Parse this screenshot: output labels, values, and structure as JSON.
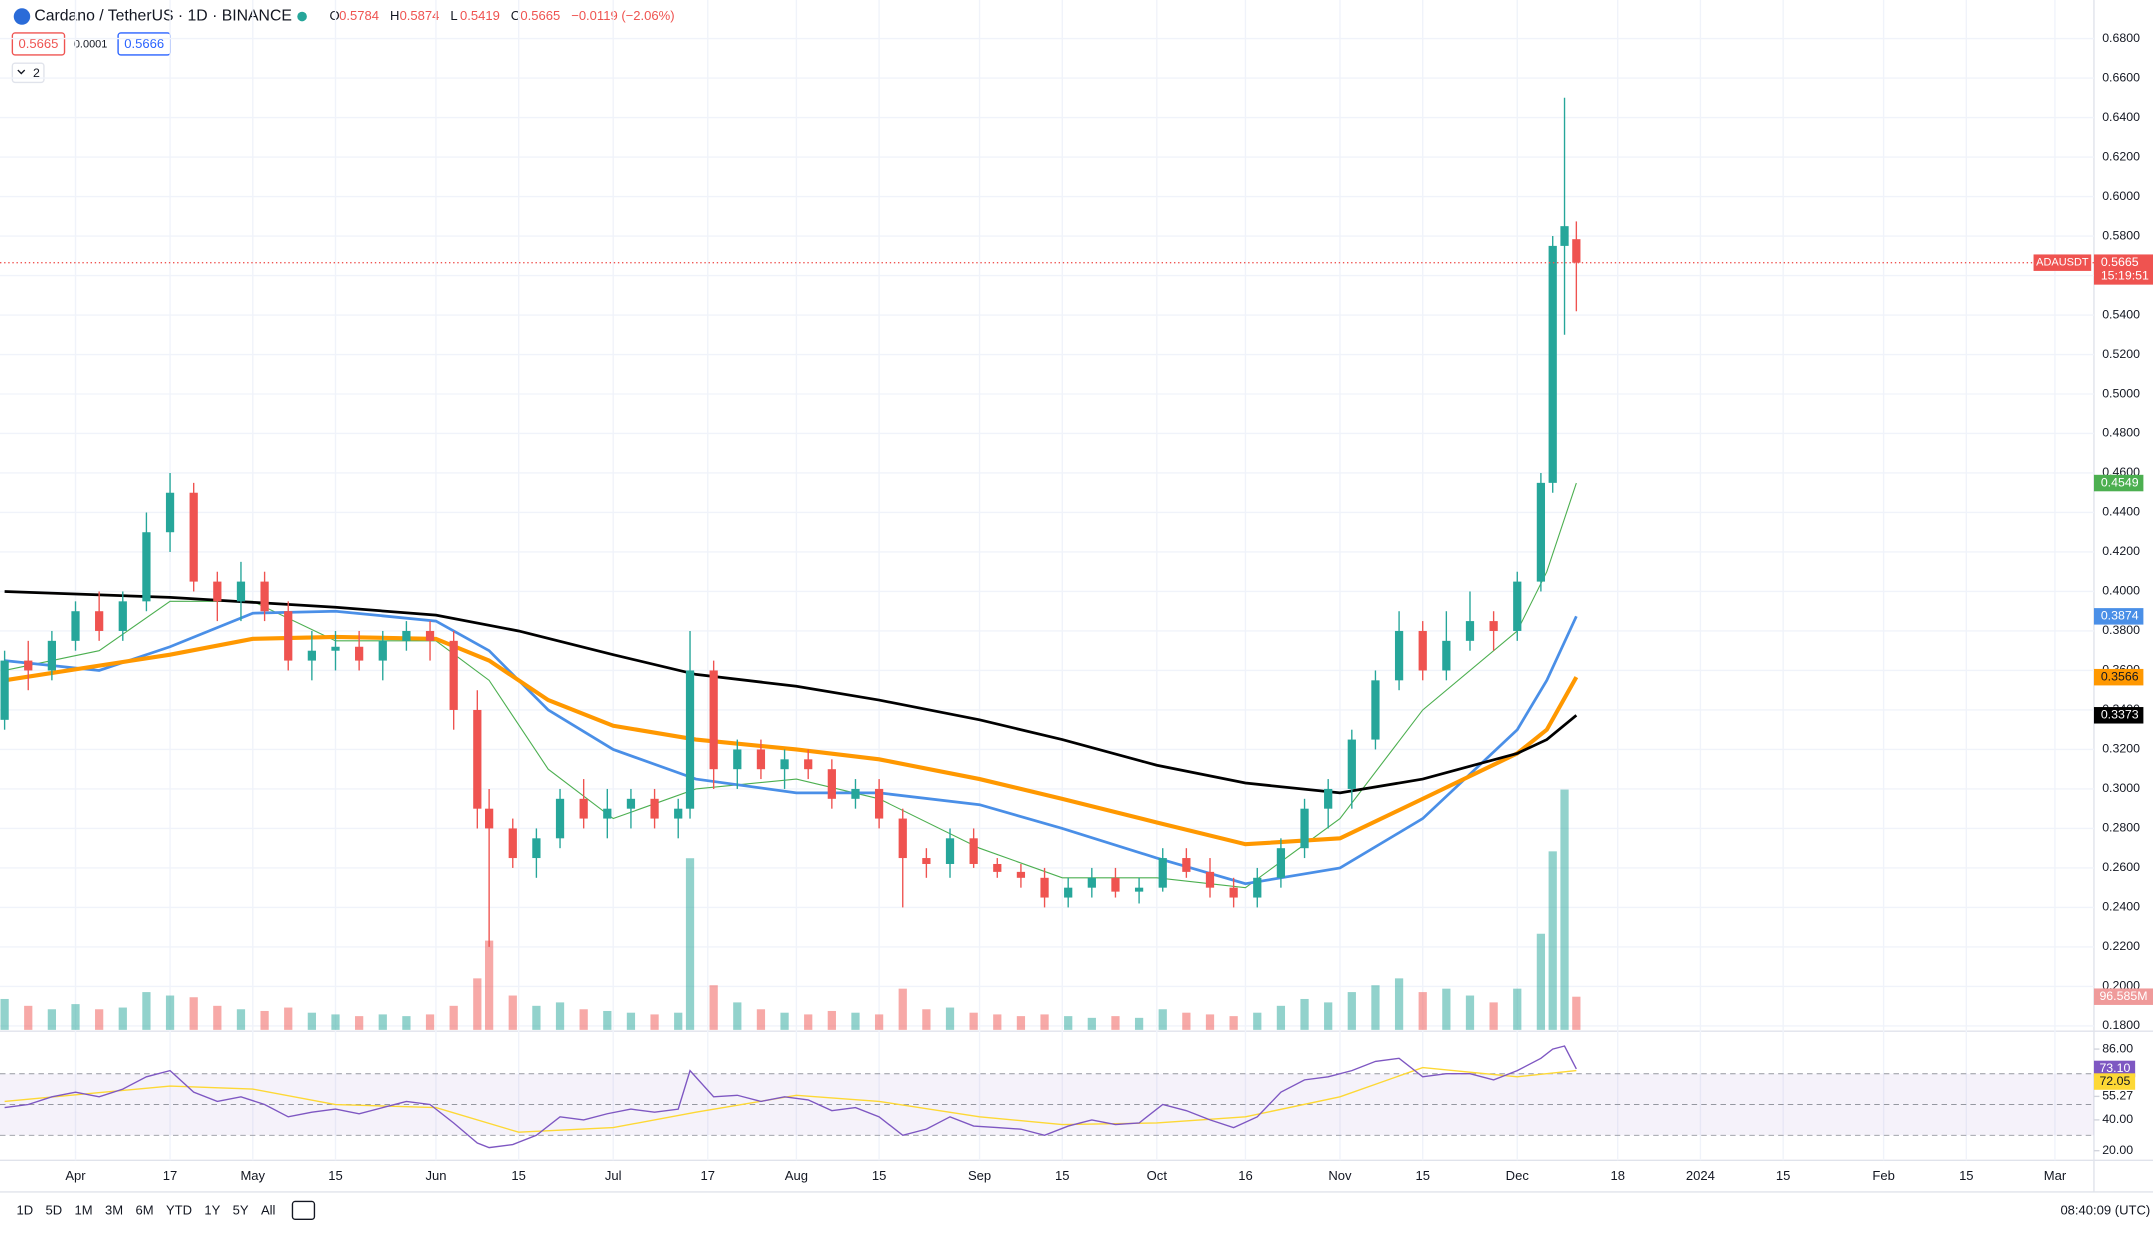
{
  "chart_data": {
    "type": "candlestick",
    "title": "Cardano / TetherUS · 1D · BINANCE",
    "ohlc_legend": [
      {
        "key": "O",
        "value": "0.5784"
      },
      {
        "key": "H",
        "value": "0.5874"
      },
      {
        "key": "L",
        "value": "0.5419"
      },
      {
        "key": "C",
        "value": "0.5665"
      }
    ],
    "change": "−0.0119 (−2.06%)",
    "bid": "0.5665",
    "spread": "0.0001",
    "ask": "0.5666",
    "indicator_count": "2",
    "up_color": "#26a69a",
    "down_color": "#ef5350",
    "x": [
      -12,
      -8,
      -4,
      0,
      4,
      8,
      12,
      16,
      20,
      24,
      28,
      32,
      36,
      40,
      44,
      48,
      52,
      56,
      60,
      64,
      68,
      70,
      74,
      78,
      82,
      86,
      90,
      94,
      98,
      102,
      104,
      108,
      112,
      116,
      120,
      124,
      128,
      132,
      136,
      140,
      144,
      148,
      152,
      156,
      160,
      164,
      168,
      172,
      176,
      180,
      184,
      188,
      192,
      196,
      200,
      204,
      208,
      212,
      216,
      220,
      224,
      228,
      232,
      236,
      240,
      244,
      248,
      250,
      252,
      254
    ],
    "open": [
      0.335,
      0.365,
      0.36,
      0.375,
      0.39,
      0.38,
      0.395,
      0.43,
      0.45,
      0.405,
      0.395,
      0.405,
      0.39,
      0.365,
      0.37,
      0.372,
      0.365,
      0.375,
      0.38,
      0.375,
      0.34,
      0.29,
      0.28,
      0.265,
      0.275,
      0.295,
      0.285,
      0.29,
      0.295,
      0.285,
      0.29,
      0.36,
      0.31,
      0.32,
      0.31,
      0.315,
      0.31,
      0.295,
      0.3,
      0.285,
      0.265,
      0.262,
      0.275,
      0.262,
      0.258,
      0.255,
      0.245,
      0.25,
      0.255,
      0.248,
      0.25,
      0.265,
      0.258,
      0.25,
      0.245,
      0.255,
      0.27,
      0.29,
      0.3,
      0.325,
      0.355,
      0.38,
      0.36,
      0.375,
      0.385,
      0.38,
      0.405,
      0.455,
      0.575,
      0.5784
    ],
    "high": [
      0.37,
      0.375,
      0.38,
      0.395,
      0.4,
      0.4,
      0.44,
      0.46,
      0.455,
      0.41,
      0.415,
      0.41,
      0.395,
      0.38,
      0.38,
      0.38,
      0.38,
      0.385,
      0.385,
      0.38,
      0.35,
      0.3,
      0.285,
      0.28,
      0.3,
      0.305,
      0.3,
      0.3,
      0.3,
      0.295,
      0.38,
      0.365,
      0.325,
      0.325,
      0.32,
      0.32,
      0.315,
      0.305,
      0.305,
      0.29,
      0.27,
      0.28,
      0.28,
      0.265,
      0.262,
      0.26,
      0.255,
      0.26,
      0.26,
      0.255,
      0.27,
      0.27,
      0.265,
      0.255,
      0.26,
      0.275,
      0.295,
      0.305,
      0.33,
      0.36,
      0.39,
      0.385,
      0.39,
      0.4,
      0.39,
      0.41,
      0.46,
      0.58,
      0.65,
      0.5874
    ],
    "low": [
      0.33,
      0.35,
      0.355,
      0.37,
      0.375,
      0.375,
      0.39,
      0.42,
      0.4,
      0.385,
      0.385,
      0.385,
      0.36,
      0.355,
      0.36,
      0.36,
      0.355,
      0.37,
      0.365,
      0.33,
      0.28,
      0.22,
      0.26,
      0.255,
      0.27,
      0.28,
      0.275,
      0.28,
      0.28,
      0.275,
      0.285,
      0.3,
      0.3,
      0.305,
      0.3,
      0.305,
      0.29,
      0.29,
      0.28,
      0.24,
      0.255,
      0.255,
      0.26,
      0.255,
      0.25,
      0.24,
      0.24,
      0.245,
      0.245,
      0.242,
      0.248,
      0.255,
      0.245,
      0.24,
      0.24,
      0.25,
      0.265,
      0.28,
      0.29,
      0.32,
      0.35,
      0.355,
      0.355,
      0.37,
      0.37,
      0.375,
      0.4,
      0.45,
      0.53,
      0.5419
    ],
    "close": [
      0.365,
      0.36,
      0.375,
      0.39,
      0.38,
      0.395,
      0.43,
      0.45,
      0.405,
      0.395,
      0.405,
      0.39,
      0.365,
      0.37,
      0.372,
      0.365,
      0.375,
      0.38,
      0.375,
      0.34,
      0.29,
      0.28,
      0.265,
      0.275,
      0.295,
      0.285,
      0.29,
      0.295,
      0.285,
      0.29,
      0.36,
      0.31,
      0.32,
      0.31,
      0.315,
      0.31,
      0.295,
      0.3,
      0.285,
      0.265,
      0.262,
      0.275,
      0.262,
      0.258,
      0.255,
      0.245,
      0.25,
      0.255,
      0.248,
      0.25,
      0.265,
      0.258,
      0.25,
      0.245,
      0.255,
      0.27,
      0.29,
      0.3,
      0.325,
      0.355,
      0.38,
      0.36,
      0.375,
      0.385,
      0.38,
      0.405,
      0.455,
      0.575,
      0.585,
      0.5665
    ],
    "xlim": [
      -12.78,
      341.6
    ],
    "xticks": [
      {
        "value": 0,
        "label": "Apr"
      },
      {
        "value": 16,
        "label": "17"
      },
      {
        "value": 30,
        "label": "May"
      },
      {
        "value": 44,
        "label": "15"
      },
      {
        "value": 61,
        "label": "Jun"
      },
      {
        "value": 75,
        "label": "15"
      },
      {
        "value": 91,
        "label": "Jul"
      },
      {
        "value": 107,
        "label": "17"
      },
      {
        "value": 122,
        "label": "Aug"
      },
      {
        "value": 136,
        "label": "15"
      },
      {
        "value": 153,
        "label": "Sep"
      },
      {
        "value": 167,
        "label": "15"
      },
      {
        "value": 183,
        "label": "Oct"
      },
      {
        "value": 198,
        "label": "16"
      },
      {
        "value": 214,
        "label": "Nov"
      },
      {
        "value": 228,
        "label": "15"
      },
      {
        "value": 244,
        "label": "Dec"
      },
      {
        "value": 261,
        "label": "18"
      },
      {
        "value": 275,
        "label": "2024"
      },
      {
        "value": 289,
        "label": "15"
      },
      {
        "value": 306,
        "label": "Feb"
      },
      {
        "value": 320,
        "label": "15"
      },
      {
        "value": 335,
        "label": "Mar"
      }
    ],
    "ylim": [
      0.178,
      0.6995
    ],
    "yticks": [
      {
        "value": 0.18,
        "label": "0.1800"
      },
      {
        "value": 0.2,
        "label": "0.2000"
      },
      {
        "value": 0.22,
        "label": "0.2200"
      },
      {
        "value": 0.24,
        "label": "0.2400"
      },
      {
        "value": 0.26,
        "label": "0.2600"
      },
      {
        "value": 0.28,
        "label": "0.2800"
      },
      {
        "value": 0.3,
        "label": "0.3000"
      },
      {
        "value": 0.32,
        "label": "0.3200"
      },
      {
        "value": 0.34,
        "label": "0.3400"
      },
      {
        "value": 0.36,
        "label": "0.3600"
      },
      {
        "value": 0.38,
        "label": "0.3800"
      },
      {
        "value": 0.4,
        "label": "0.4000"
      },
      {
        "value": 0.42,
        "label": "0.4200"
      },
      {
        "value": 0.44,
        "label": "0.4400"
      },
      {
        "value": 0.46,
        "label": "0.4600"
      },
      {
        "value": 0.48,
        "label": "0.4800"
      },
      {
        "value": 0.5,
        "label": "0.5000"
      },
      {
        "value": 0.52,
        "label": "0.5200"
      },
      {
        "value": 0.54,
        "label": "0.5400"
      },
      {
        "value": 0.56,
        "label": "0.5600"
      },
      {
        "value": 0.58,
        "label": "0.5800"
      },
      {
        "value": 0.6,
        "label": "0.6000"
      },
      {
        "value": 0.62,
        "label": "0.6200"
      },
      {
        "value": 0.64,
        "label": "0.6400"
      },
      {
        "value": 0.66,
        "label": "0.6600"
      },
      {
        "value": 0.68,
        "label": "0.6800"
      }
    ],
    "grid": true,
    "last_price": {
      "symbol": "ADAUSDT",
      "value": 0.5665,
      "countdown": "15:19:51",
      "color": "#ef5350"
    },
    "lines": [
      {
        "color": "#4caf50",
        "width": 0.8,
        "x": [
          -12,
          4,
          16,
          30,
          44,
          61,
          70,
          80,
          91,
          105,
          122,
          136,
          153,
          167,
          183,
          198,
          214,
          228,
          244,
          249,
          254
        ],
        "values": [
          0.36,
          0.37,
          0.395,
          0.395,
          0.375,
          0.375,
          0.355,
          0.31,
          0.285,
          0.3,
          0.305,
          0.295,
          0.27,
          0.255,
          0.255,
          0.25,
          0.285,
          0.34,
          0.38,
          0.41,
          0.4549
        ]
      },
      {
        "color": "#4a8fe7",
        "width": 2,
        "x": [
          -12,
          4,
          16,
          30,
          44,
          61,
          70,
          80,
          91,
          105,
          122,
          136,
          153,
          167,
          183,
          198,
          214,
          228,
          244,
          249,
          254
        ],
        "values": [
          0.365,
          0.36,
          0.372,
          0.389,
          0.39,
          0.385,
          0.37,
          0.34,
          0.32,
          0.305,
          0.298,
          0.298,
          0.292,
          0.28,
          0.265,
          0.252,
          0.26,
          0.285,
          0.33,
          0.355,
          0.3874
        ]
      },
      {
        "color": "#ff9800",
        "width": 3,
        "x": [
          -12,
          16,
          30,
          44,
          61,
          70,
          80,
          91,
          105,
          122,
          136,
          153,
          167,
          183,
          198,
          214,
          228,
          244,
          249,
          254
        ],
        "values": [
          0.355,
          0.368,
          0.376,
          0.377,
          0.376,
          0.365,
          0.345,
          0.332,
          0.325,
          0.32,
          0.315,
          0.305,
          0.295,
          0.283,
          0.272,
          0.275,
          0.295,
          0.318,
          0.33,
          0.3566
        ]
      },
      {
        "color": "#000000",
        "width": 2,
        "x": [
          -12,
          16,
          44,
          61,
          75,
          91,
          105,
          122,
          136,
          153,
          167,
          183,
          198,
          214,
          228,
          244,
          249,
          254
        ],
        "values": [
          0.4,
          0.397,
          0.392,
          0.388,
          0.38,
          0.368,
          0.358,
          0.352,
          0.345,
          0.335,
          0.325,
          0.312,
          0.303,
          0.298,
          0.305,
          0.318,
          0.325,
          0.3373
        ]
      }
    ],
    "volume": {
      "values": [
        90,
        70,
        60,
        75,
        60,
        65,
        110,
        100,
        95,
        70,
        60,
        55,
        65,
        50,
        45,
        40,
        45,
        40,
        45,
        70,
        150,
        260,
        100,
        70,
        80,
        60,
        55,
        50,
        45,
        50,
        500,
        130,
        80,
        60,
        50,
        45,
        55,
        50,
        45,
        120,
        60,
        65,
        50,
        45,
        40,
        45,
        40,
        35,
        40,
        35,
        60,
        50,
        45,
        40,
        50,
        70,
        90,
        80,
        110,
        130,
        150,
        110,
        120,
        100,
        80,
        120,
        280,
        520,
        700,
        96.585
      ],
      "vlim": [
        0,
        720
      ],
      "badge": {
        "value": 96.585,
        "label": "96.585M"
      }
    },
    "rsi": {
      "values": [
        48,
        50,
        55,
        58,
        55,
        60,
        68,
        72,
        58,
        52,
        55,
        50,
        42,
        45,
        47,
        44,
        48,
        52,
        50,
        38,
        25,
        22,
        24,
        30,
        42,
        40,
        44,
        47,
        45,
        47,
        72,
        55,
        56,
        52,
        55,
        53,
        46,
        48,
        42,
        30,
        34,
        42,
        36,
        35,
        34,
        30,
        36,
        40,
        37,
        38,
        50,
        46,
        40,
        35,
        42,
        58,
        66,
        68,
        72,
        78,
        80,
        68,
        70,
        70,
        66,
        72,
        80,
        86,
        88,
        73.1
      ],
      "color": "#7e57c2",
      "ylim": [
        13.76,
        96.7
      ],
      "yticks": [
        {
          "value": 86,
          "label": "86.00"
        },
        {
          "value": 55.27,
          "label": "55.27"
        },
        {
          "value": 40,
          "label": "40.00"
        },
        {
          "value": 20,
          "label": "20.00"
        }
      ],
      "bands": [
        70,
        50,
        30
      ],
      "current": {
        "value": 73.1,
        "label": "73.10"
      },
      "ma": {
        "color": "#fdd835",
        "x": [
          -12,
          16,
          30,
          44,
          61,
          75,
          91,
          105,
          122,
          136,
          153,
          167,
          183,
          198,
          214,
          228,
          244,
          254
        ],
        "values": [
          52,
          62,
          60,
          50,
          48,
          32,
          35,
          45,
          56,
          52,
          42,
          37,
          38,
          42,
          55,
          74,
          68,
          72.05
        ]
      }
    },
    "periods": [
      "1D",
      "5D",
      "1M",
      "3M",
      "6M",
      "YTD",
      "1Y",
      "5Y",
      "All"
    ],
    "clock": "08:40:09 (UTC)"
  }
}
